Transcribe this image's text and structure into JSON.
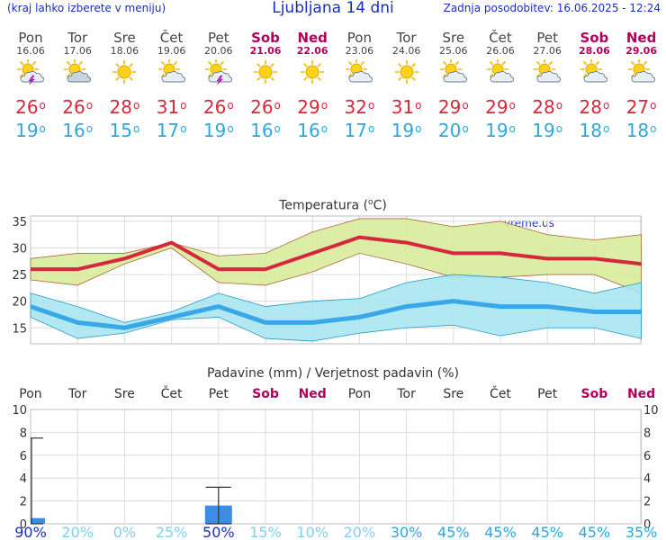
{
  "header": {
    "left_note": "(kraj lahko izberete v meniju)",
    "title": "Ljubljana 14 dni",
    "updated": "Zadnja posodobitev: 16.06.2025 - 12:24"
  },
  "days": [
    {
      "name": "Pon",
      "date": "16.06",
      "weekend": false,
      "icon": "sun-cloud-lightning-icon",
      "hi": "26",
      "lo": "19"
    },
    {
      "name": "Tor",
      "date": "17.06",
      "weekend": false,
      "icon": "sun-cloudy-icon",
      "hi": "26",
      "lo": "16"
    },
    {
      "name": "Sre",
      "date": "18.06",
      "weekend": false,
      "icon": "sun-icon",
      "hi": "28",
      "lo": "15"
    },
    {
      "name": "Čet",
      "date": "19.06",
      "weekend": false,
      "icon": "sun-cloud-icon",
      "hi": "31",
      "lo": "17"
    },
    {
      "name": "Pet",
      "date": "20.06",
      "weekend": false,
      "icon": "sun-cloud-lightning-icon",
      "hi": "26",
      "lo": "19"
    },
    {
      "name": "Sob",
      "date": "21.06",
      "weekend": true,
      "icon": "sun-icon",
      "hi": "26",
      "lo": "16"
    },
    {
      "name": "Ned",
      "date": "22.06",
      "weekend": true,
      "icon": "sun-icon",
      "hi": "29",
      "lo": "16"
    },
    {
      "name": "Pon",
      "date": "23.06",
      "weekend": false,
      "icon": "sun-cloud-icon",
      "hi": "32",
      "lo": "17"
    },
    {
      "name": "Tor",
      "date": "24.06",
      "weekend": false,
      "icon": "sun-icon",
      "hi": "31",
      "lo": "19"
    },
    {
      "name": "Sre",
      "date": "25.06",
      "weekend": false,
      "icon": "sun-cloud-icon",
      "hi": "29",
      "lo": "20"
    },
    {
      "name": "Čet",
      "date": "26.06",
      "weekend": false,
      "icon": "sun-cloud-icon",
      "hi": "29",
      "lo": "19"
    },
    {
      "name": "Pet",
      "date": "27.06",
      "weekend": false,
      "icon": "sun-cloud-icon",
      "hi": "28",
      "lo": "19"
    },
    {
      "name": "Sob",
      "date": "28.06",
      "weekend": true,
      "icon": "sun-cloud-icon",
      "hi": "28",
      "lo": "18"
    },
    {
      "name": "Ned",
      "date": "29.06",
      "weekend": true,
      "icon": "sun-cloud-icon",
      "hi": "27",
      "lo": "18"
    }
  ],
  "degree_symbol": "o",
  "colors": {
    "weekend": "#b0005a",
    "hi": "#d6283c",
    "lo": "#2aa8e0",
    "hi_band": "#d8ec9c",
    "lo_band": "#a8e6f0",
    "lo_line": "#3aa8e8",
    "bar": "#3a8ee6",
    "pct_strong": "#1a2fb8",
    "pct_weak": "#7fd0f0"
  },
  "credit": "vreme.us",
  "chart_data": [
    {
      "type": "line",
      "title": "Temperatura (°C)",
      "categories": [
        "Pon",
        "Tor",
        "Sre",
        "Čet",
        "Pet",
        "Sob",
        "Ned",
        "Pon",
        "Tor",
        "Sre",
        "Čet",
        "Pet",
        "Sob",
        "Ned"
      ],
      "ylim": [
        12,
        36
      ],
      "yticks": [
        15,
        20,
        25,
        30,
        35
      ],
      "grid": true,
      "series": [
        {
          "role": "high",
          "values": [
            26,
            26,
            28,
            31,
            26,
            26,
            29,
            32,
            31,
            29,
            29,
            28,
            28,
            27
          ],
          "band_max": [
            28,
            29,
            29,
            31,
            28.5,
            29,
            33,
            35.5,
            35.5,
            34,
            35,
            32.5,
            31.5,
            32.5
          ],
          "band_min": [
            24,
            23,
            27,
            30,
            23.5,
            23,
            25.5,
            29,
            27,
            24.5,
            24.5,
            25,
            25,
            21.5
          ]
        },
        {
          "role": "low",
          "values": [
            19,
            16,
            15,
            17,
            19,
            16,
            16,
            17,
            19,
            20,
            19,
            19,
            18,
            18
          ],
          "band_max": [
            21.5,
            19,
            16,
            18,
            21.5,
            19,
            20,
            20.5,
            23.5,
            25,
            24.5,
            23.5,
            21.5,
            23.5
          ],
          "band_min": [
            17,
            13,
            14,
            16.5,
            17,
            13,
            12.5,
            14,
            15,
            15.5,
            13.5,
            15,
            15,
            13
          ]
        }
      ]
    },
    {
      "type": "bar",
      "title": "Padavine (mm) / Verjetnost padavin (%)",
      "categories": [
        "Pon",
        "Tor",
        "Sre",
        "Čet",
        "Pet",
        "Sob",
        "Ned",
        "Pon",
        "Tor",
        "Sre",
        "Čet",
        "Pet",
        "Sob",
        "Ned"
      ],
      "ylim": [
        0,
        10
      ],
      "yticks": [
        0,
        2,
        4,
        6,
        8,
        10
      ],
      "values": [
        0.5,
        0,
        0,
        0,
        1.6,
        0,
        0,
        0,
        0,
        0,
        0,
        0,
        0,
        0
      ],
      "error_max": [
        7.5,
        null,
        null,
        null,
        3.2,
        null,
        null,
        null,
        null,
        null,
        null,
        null,
        null,
        null
      ],
      "probability_labels": [
        "90%",
        "20%",
        "0%",
        "25%",
        "50%",
        "15%",
        "10%",
        "20%",
        "30%",
        "45%",
        "45%",
        "45%",
        "45%",
        "35%"
      ],
      "probability": [
        90,
        20,
        0,
        25,
        50,
        15,
        10,
        20,
        30,
        45,
        45,
        45,
        45,
        35
      ]
    }
  ]
}
